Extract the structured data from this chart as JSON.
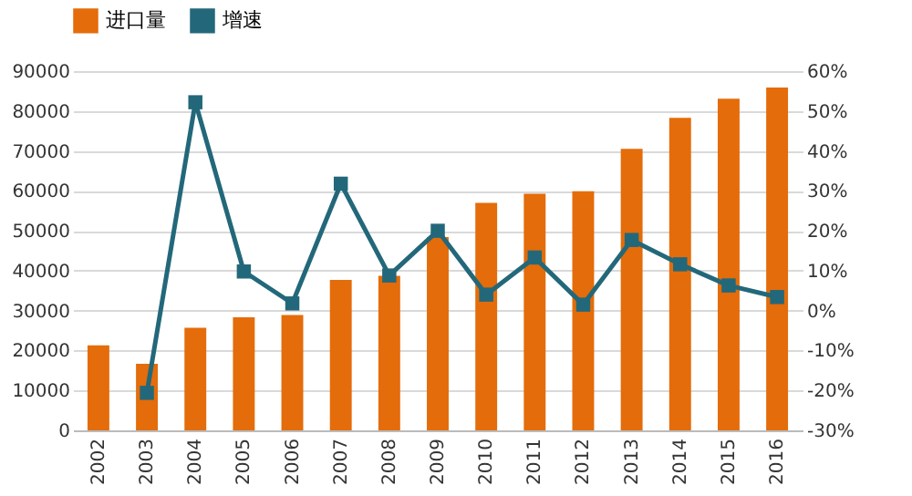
{
  "chart_data": {
    "type": "bar",
    "categories": [
      "2002",
      "2003",
      "2004",
      "2005",
      "2006",
      "2007",
      "2008",
      "2009",
      "2010",
      "2011",
      "2012",
      "2013",
      "2014",
      "2015",
      "2016"
    ],
    "series": [
      {
        "name": "进口量",
        "color": "#e46c0a",
        "values": [
          21300,
          16700,
          25700,
          28300,
          28900,
          37700,
          38700,
          48400,
          57000,
          59300,
          59900,
          70500,
          78300,
          83100,
          85900
        ]
      },
      {
        "name": "增速",
        "type": "line",
        "axis": "y2",
        "color": "#23687a",
        "marker": "square",
        "values": [
          null,
          -20.6,
          52.2,
          9.8,
          1.8,
          31.8,
          8.8,
          20,
          4.0,
          13.3,
          1.5,
          17.7,
          11.6,
          6.3,
          3.4
        ]
      }
    ],
    "ylim": [
      0,
      90000
    ],
    "yticks": [
      0,
      10000,
      20000,
      30000,
      40000,
      50000,
      60000,
      70000,
      80000,
      90000
    ],
    "y2lim": [
      -30,
      60
    ],
    "y2ticks": [
      {
        "value": -30,
        "label": "-30%"
      },
      {
        "value": -20,
        "label": "-20%"
      },
      {
        "value": -10,
        "label": "-10%"
      },
      {
        "value": 0,
        "label": "0%"
      },
      {
        "value": 10,
        "label": "10%"
      },
      {
        "value": 20,
        "label": "20%"
      },
      {
        "value": 30,
        "label": "30%"
      },
      {
        "value": 40,
        "label": "40%"
      },
      {
        "value": 50,
        "label": "50%"
      },
      {
        "value": 60,
        "label": "60%"
      }
    ],
    "grid": "y",
    "legend": "top"
  }
}
